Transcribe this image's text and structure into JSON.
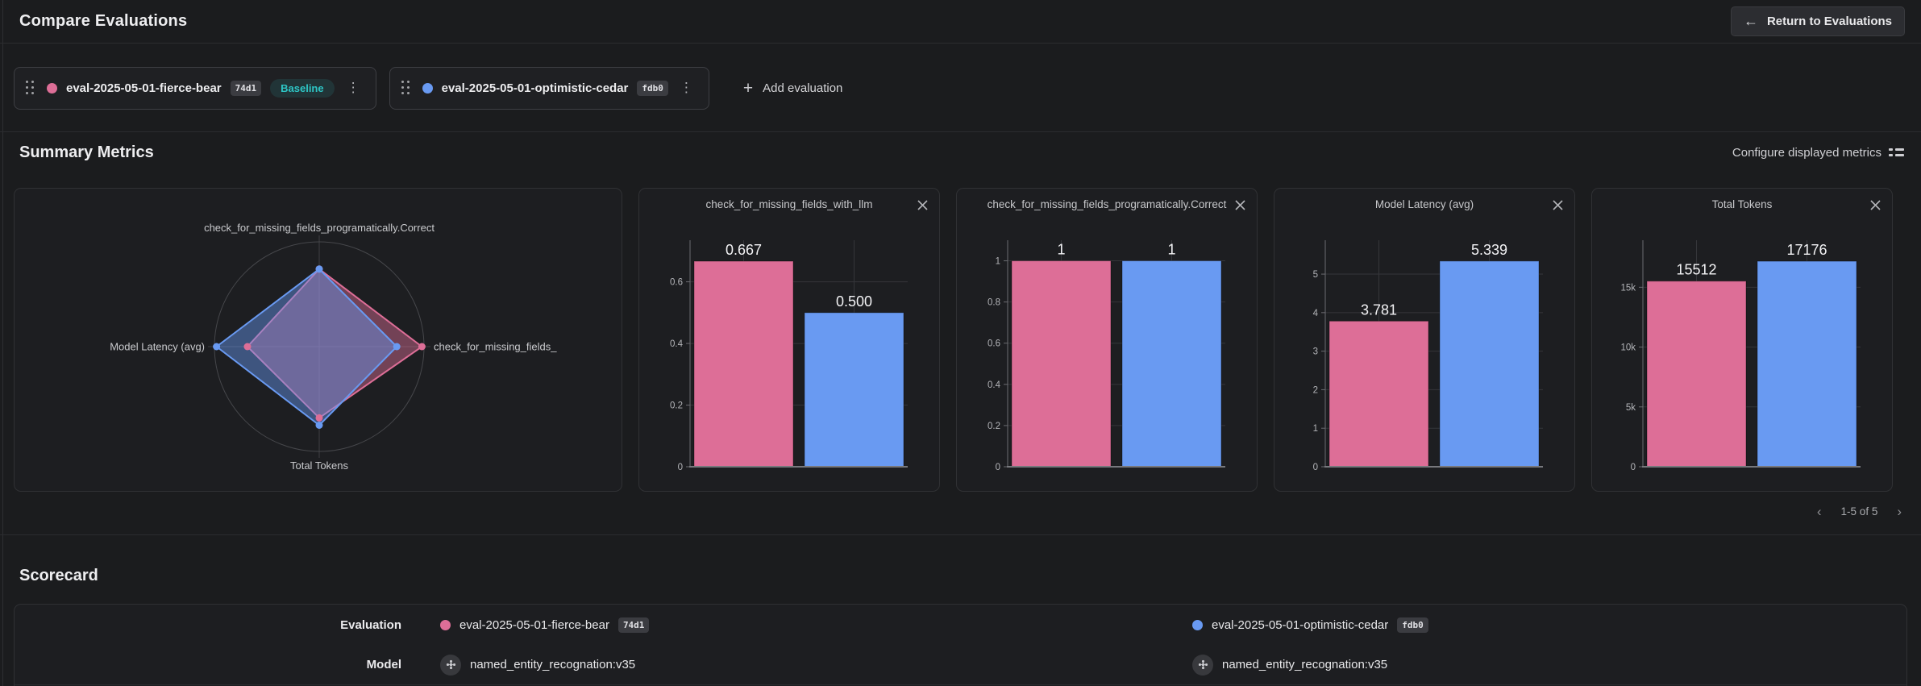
{
  "colors": {
    "pink": "#dd6e97",
    "blue": "#699af2",
    "baseline_teal": "#2ec5c5"
  },
  "icons": {
    "back_arrow": "←",
    "plus": "+",
    "kebab": "⋮",
    "chevron_left": "‹",
    "chevron_right": "›"
  },
  "header": {
    "title": "Compare Evaluations",
    "return_button_label": "Return to Evaluations"
  },
  "evaluation_bar": {
    "add_evaluation_label": "Add evaluation",
    "evaluations": [
      {
        "name": "eval-2025-05-01-fierce-bear",
        "id": "74d1",
        "baseline_label": "Baseline",
        "color_key": "pink"
      },
      {
        "name": "eval-2025-05-01-optimistic-cedar",
        "id": "fdb0",
        "color_key": "blue"
      }
    ]
  },
  "summary_metrics": {
    "title": "Summary Metrics",
    "configure_label": "Configure displayed metrics",
    "pagination": "1-5 of 5"
  },
  "chart_data": [
    {
      "type": "radar",
      "metrics": [
        "check_for_missing_fields_programatically.Correct",
        "check_for_missing_fields_with_llm",
        "Total Tokens",
        "Model Latency (avg)"
      ],
      "axis_labels": [
        "check_for_missing_fields_programatically.Correct",
        "check_for_missing_fields_",
        "Total Tokens",
        "Model Latency (avg)"
      ],
      "series": [
        {
          "name": "eval-2025-05-01-fierce-bear",
          "color_key": "pink",
          "values": [
            1,
            0.667,
            15512,
            3.781
          ],
          "plot_ratios": [
            0.74,
            0.98,
            0.68,
            0.685
          ]
        },
        {
          "name": "eval-2025-05-01-optimistic-cedar",
          "color_key": "blue",
          "values": [
            1,
            0.5,
            17176,
            5.339
          ],
          "plot_ratios": [
            0.74,
            0.74,
            0.75,
            0.98
          ]
        }
      ]
    },
    {
      "type": "bar",
      "title": "check_for_missing_fields_with_llm",
      "categories": [
        "eval-2025-05-01-fierce-bear",
        "eval-2025-05-01-optimistic-cedar"
      ],
      "values": [
        0.667,
        0.5
      ],
      "value_labels": [
        "0.667",
        "0.500"
      ],
      "yticks": [
        0,
        0.2,
        0.4,
        0.6
      ],
      "ytick_labels": [
        "0",
        "0.2",
        "0.4",
        "0.6"
      ],
      "ylim": [
        0,
        0.735
      ]
    },
    {
      "type": "bar",
      "title": "check_for_missing_fields_programatically.Correct",
      "categories": [
        "eval-2025-05-01-fierce-bear",
        "eval-2025-05-01-optimistic-cedar"
      ],
      "values": [
        1,
        1
      ],
      "value_labels": [
        "1",
        "1"
      ],
      "yticks": [
        0,
        0.2,
        0.4,
        0.6,
        0.8,
        1
      ],
      "ytick_labels": [
        "0",
        "0.2",
        "0.4",
        "0.6",
        "0.8",
        "1"
      ],
      "ylim": [
        0,
        1.1
      ]
    },
    {
      "type": "bar",
      "title": "Model Latency (avg)",
      "categories": [
        "eval-2025-05-01-fierce-bear",
        "eval-2025-05-01-optimistic-cedar"
      ],
      "values": [
        3.781,
        5.339
      ],
      "value_labels": [
        "3.781",
        "5.339"
      ],
      "yticks": [
        0,
        1,
        2,
        3,
        4,
        5
      ],
      "ytick_labels": [
        "0",
        "1",
        "2",
        "3",
        "4",
        "5"
      ],
      "ylim": [
        0,
        5.88
      ]
    },
    {
      "type": "bar",
      "title": "Total Tokens",
      "categories": [
        "eval-2025-05-01-fierce-bear",
        "eval-2025-05-01-optimistic-cedar"
      ],
      "values": [
        15512,
        17176
      ],
      "value_labels": [
        "15512",
        "17176"
      ],
      "yticks": [
        0,
        5000,
        10000,
        15000
      ],
      "ytick_labels": [
        "0",
        "5k",
        "10k",
        "15k"
      ],
      "ylim": [
        0,
        18930
      ]
    }
  ],
  "scorecard": {
    "title": "Scorecard",
    "rows": [
      {
        "label": "Evaluation",
        "cells": [
          {
            "text": "eval-2025-05-01-fierce-bear",
            "id": "74d1",
            "color_key": "pink"
          },
          {
            "text": "eval-2025-05-01-optimistic-cedar",
            "id": "fdb0",
            "color_key": "blue"
          }
        ]
      },
      {
        "label": "Model",
        "cells": [
          {
            "text": "named_entity_recognation:v35"
          },
          {
            "text": "named_entity_recognation:v35"
          }
        ]
      }
    ]
  }
}
